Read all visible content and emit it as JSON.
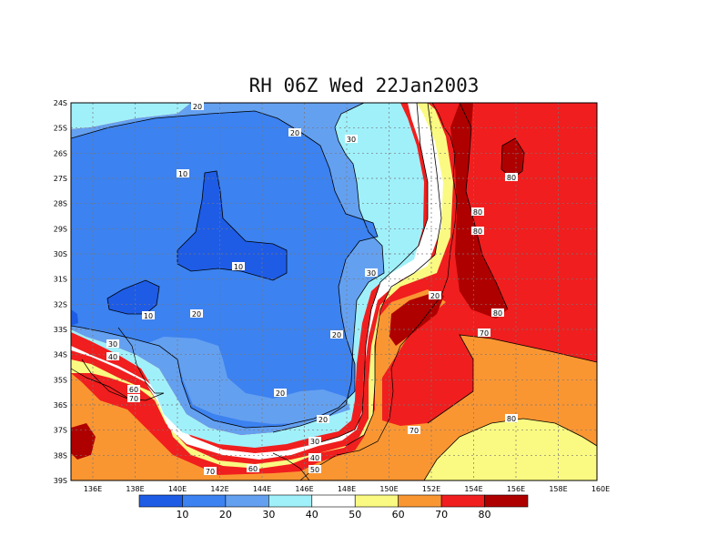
{
  "title": "RH 06Z Wed 22Jan2003",
  "map": {
    "variable": "RH",
    "lat_labels": [
      "24S",
      "25S",
      "26S",
      "27S",
      "28S",
      "29S",
      "30S",
      "31S",
      "32S",
      "33S",
      "34S",
      "35S",
      "36S",
      "37S",
      "38S",
      "39S"
    ],
    "lon_labels": [
      "136E",
      "138E",
      "140E",
      "142E",
      "144E",
      "146E",
      "148E",
      "150E",
      "152E",
      "154E",
      "156E",
      "158E",
      "160E"
    ],
    "contour_labels": [
      {
        "text": "20"
      },
      {
        "text": "20"
      },
      {
        "text": "30"
      },
      {
        "text": "10"
      },
      {
        "text": "80"
      },
      {
        "text": "80"
      },
      {
        "text": "80"
      },
      {
        "text": "10"
      },
      {
        "text": "30"
      },
      {
        "text": "20"
      },
      {
        "text": "10"
      },
      {
        "text": "20"
      },
      {
        "text": "80"
      },
      {
        "text": "70"
      },
      {
        "text": "20"
      },
      {
        "text": "30"
      },
      {
        "text": "40"
      },
      {
        "text": "60"
      },
      {
        "text": "70"
      },
      {
        "text": "20"
      },
      {
        "text": "20"
      },
      {
        "text": "80"
      },
      {
        "text": "70"
      },
      {
        "text": "30"
      },
      {
        "text": "40"
      },
      {
        "text": "50"
      },
      {
        "text": "70"
      },
      {
        "text": "60"
      }
    ]
  },
  "colorbar": {
    "colors": [
      "#1e5ce6",
      "#3c82f0",
      "#64a0f0",
      "#a0f0fa",
      "#ffffff",
      "#fafa82",
      "#fa9632",
      "#f01e1e",
      "#af0000"
    ],
    "labels": [
      "10",
      "20",
      "30",
      "40",
      "50",
      "60",
      "70",
      "80"
    ]
  },
  "colors": {
    "c10": "#1e5ce6",
    "c20": "#3c82f0",
    "c30": "#64a0f0",
    "c40": "#a0f0fa",
    "c50": "#ffffff",
    "c60": "#fafa82",
    "c70": "#fa9632",
    "c80": "#f01e1e",
    "c90": "#af0000"
  }
}
